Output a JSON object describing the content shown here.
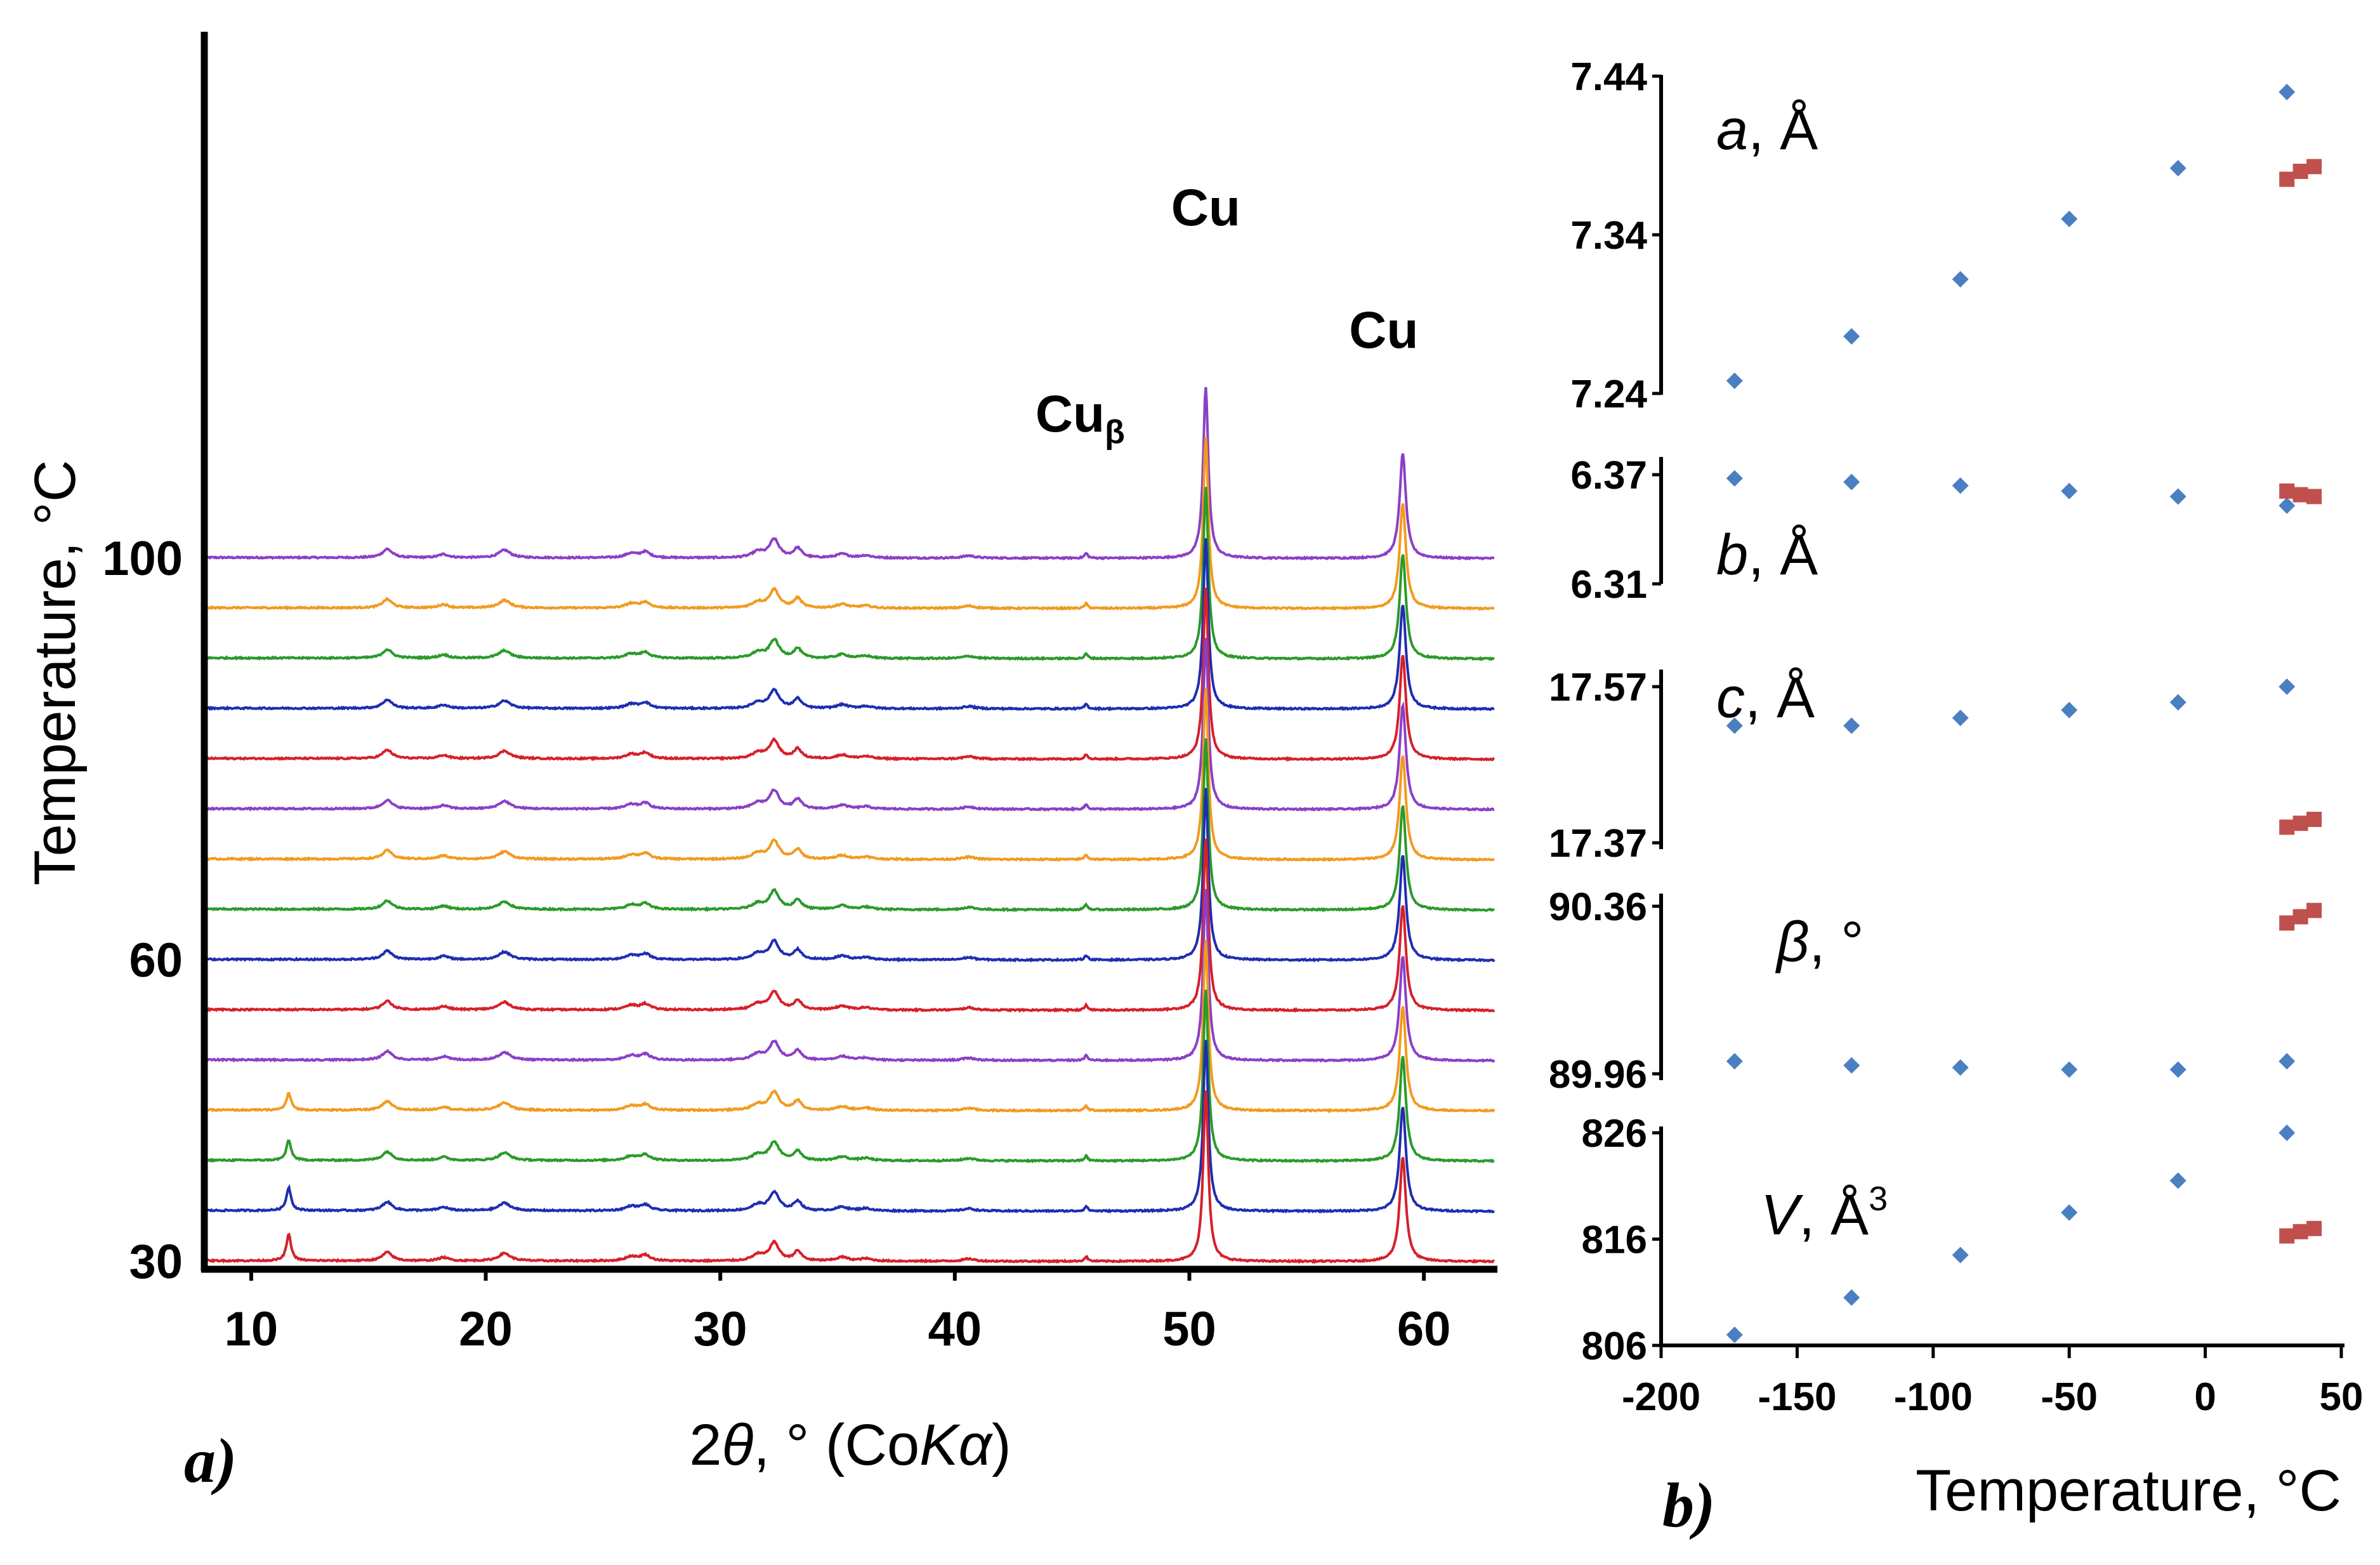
{
  "chart_data": [
    {
      "panel": "a)",
      "type": "line",
      "title": "",
      "xlabel": "2θ, ° (CoKα)",
      "xlabel_parts": {
        "prefix": "2",
        "theta": "θ",
        "mid": ", ° (Co",
        "k": "K",
        "alpha": "α",
        "suffix": ")"
      },
      "ylabel": "Temperature, °C",
      "xlim": [
        8,
        63
      ],
      "x_ticks": [
        10,
        20,
        30,
        40,
        50,
        60
      ],
      "y_ticks": [
        30,
        60,
        100
      ],
      "series_colors": [
        "#d6202a",
        "#1f2db0",
        "#2a9a2a",
        "#f29a20",
        "#8b3fc6"
      ],
      "temperatures": [
        30,
        35,
        40,
        45,
        50,
        55,
        60,
        65,
        70,
        75,
        80,
        85,
        90,
        95,
        100
      ],
      "peaks": [
        {
          "pos": 11.6,
          "h": 0.55,
          "w": 0.12,
          "only_low_T": true
        },
        {
          "pos": 15.8,
          "h": 0.18,
          "w": 0.25
        },
        {
          "pos": 18.2,
          "h": 0.07,
          "w": 0.25
        },
        {
          "pos": 20.8,
          "h": 0.16,
          "w": 0.3
        },
        {
          "pos": 26.2,
          "h": 0.09,
          "w": 0.3
        },
        {
          "pos": 26.8,
          "h": 0.12,
          "w": 0.25
        },
        {
          "pos": 31.6,
          "h": 0.12,
          "w": 0.3
        },
        {
          "pos": 32.3,
          "h": 0.38,
          "w": 0.25
        },
        {
          "pos": 33.3,
          "h": 0.2,
          "w": 0.2
        },
        {
          "pos": 35.2,
          "h": 0.08,
          "w": 0.3
        },
        {
          "pos": 36.2,
          "h": 0.05,
          "w": 0.3
        },
        {
          "pos": 40.6,
          "h": 0.05,
          "w": 0.3
        },
        {
          "pos": 45.6,
          "h": 0.1,
          "w": 0.08
        },
        {
          "pos": 50.7,
          "h": 3.6,
          "w": 0.13
        },
        {
          "pos": 59.1,
          "h": 2.2,
          "w": 0.16
        }
      ],
      "annotations": [
        {
          "text": "Cu",
          "x": 50.7
        },
        {
          "text": "Cu",
          "x": 59.1
        },
        {
          "text": "Cu",
          "sub": "β",
          "x": 45.6
        }
      ]
    },
    {
      "panel": "b)",
      "type": "scatter",
      "xlabel": "Temperature, °C",
      "xlim": [
        -200,
        50
      ],
      "x_ticks": [
        -200,
        -150,
        -100,
        -50,
        0,
        50
      ],
      "series_colors": {
        "low_T": "#4a7fc1",
        "high_T": "#c0504d"
      },
      "subplots": [
        {
          "param": "a",
          "unit": ", Å",
          "ylim": [
            7.24,
            7.44
          ],
          "y_ticks": [
            "7.24",
            "7.34",
            "7.44"
          ],
          "low_T": {
            "x": [
              -173,
              -130,
              -90,
              -50,
              -10,
              30
            ],
            "y": [
              7.248,
              7.276,
              7.312,
              7.35,
              7.382,
              7.43
            ]
          },
          "high_T": {
            "x": [
              30,
              35,
              40
            ],
            "y": [
              7.375,
              7.38,
              7.383
            ]
          }
        },
        {
          "param": "b",
          "unit": ", Å",
          "ylim": [
            6.31,
            6.37
          ],
          "y_ticks": [
            "6.31",
            "6.37"
          ],
          "low_T": {
            "x": [
              -173,
              -130,
              -90,
              -50,
              -10,
              30
            ],
            "y": [
              6.368,
              6.366,
              6.364,
              6.361,
              6.358,
              6.353
            ]
          },
          "high_T": {
            "x": [
              30,
              35,
              40
            ],
            "y": [
              6.361,
              6.359,
              6.358
            ]
          }
        },
        {
          "param": "c",
          "unit": ", Å",
          "ylim": [
            17.37,
            17.57
          ],
          "y_ticks": [
            "17.37",
            "17.57"
          ],
          "low_T": {
            "x": [
              -173,
              -130,
              -90,
              -50,
              -10,
              30
            ],
            "y": [
              17.52,
              17.52,
              17.53,
              17.54,
              17.55,
              17.57
            ]
          },
          "high_T": {
            "x": [
              30,
              35,
              40
            ],
            "y": [
              17.39,
              17.395,
              17.4
            ]
          }
        },
        {
          "param": "β",
          "unit": ", °",
          "ylim": [
            89.96,
            90.36
          ],
          "y_ticks": [
            "89.96",
            "90.36"
          ],
          "low_T": {
            "x": [
              -173,
              -130,
              -90,
              -50,
              -10,
              30
            ],
            "y": [
              89.99,
              89.98,
              89.975,
              89.97,
              89.97,
              89.99
            ]
          },
          "high_T": {
            "x": [
              30,
              35,
              40
            ],
            "y": [
              90.32,
              90.335,
              90.35
            ]
          }
        },
        {
          "param": "V",
          "unit": ", Å",
          "unit_sup": "3",
          "ylim": [
            806,
            826
          ],
          "y_ticks": [
            "806",
            "816",
            "826"
          ],
          "low_T": {
            "x": [
              -173,
              -130,
              -90,
              -50,
              -10,
              30
            ],
            "y": [
              807,
              810.5,
              814.5,
              818.5,
              821.5,
              826
            ]
          },
          "high_T": {
            "x": [
              30,
              35,
              40
            ],
            "y": [
              816.3,
              816.7,
              817
            ]
          }
        }
      ]
    }
  ]
}
